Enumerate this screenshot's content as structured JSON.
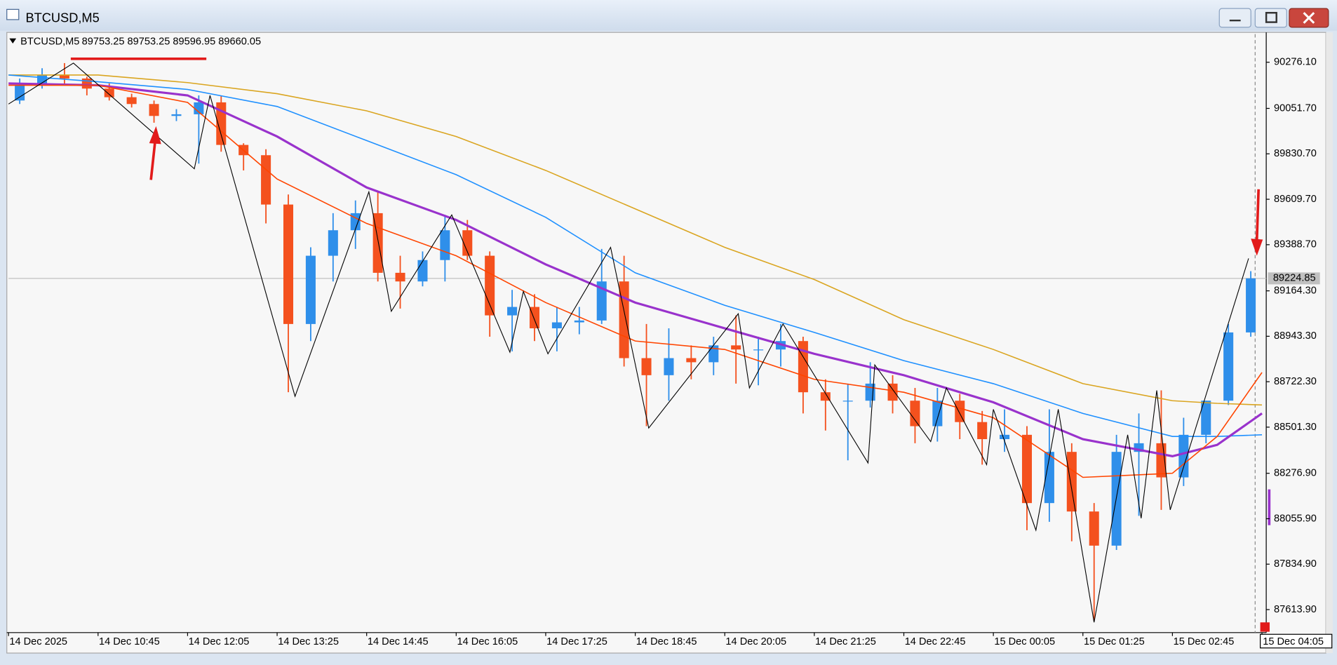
{
  "chart_data": {
    "type": "candlestick",
    "window_title": "BTCUSD,M5",
    "title": "BTCUSD,M5",
    "subtitle": "89753.25 89753.25 89596.95 89660.05",
    "xlim": [
      0,
      56
    ],
    "xticks": [
      {
        "value": 0,
        "label": "14 Dec 2025"
      },
      {
        "value": 4,
        "label": "14 Dec 10:45"
      },
      {
        "value": 8,
        "label": "14 Dec 12:05"
      },
      {
        "value": 12,
        "label": "14 Dec 13:25"
      },
      {
        "value": 16,
        "label": "14 Dec 14:45"
      },
      {
        "value": 20,
        "label": "14 Dec 16:05"
      },
      {
        "value": 24,
        "label": "14 Dec 17:25"
      },
      {
        "value": 28,
        "label": "14 Dec 18:45"
      },
      {
        "value": 32,
        "label": "14 Dec 20:05"
      },
      {
        "value": 36,
        "label": "14 Dec 21:25"
      },
      {
        "value": 40,
        "label": "14 Dec 22:45"
      },
      {
        "value": 44,
        "label": "15 Dec 00:05"
      },
      {
        "value": 48,
        "label": "15 Dec 01:25"
      },
      {
        "value": 52,
        "label": "15 Dec 02:45"
      },
      {
        "value": 56,
        "label": "15 Dec 04:05"
      }
    ],
    "ylim": [
      87502,
      90413
    ],
    "yticks": [
      {
        "value": 90276.1,
        "label": "90276.10"
      },
      {
        "value": 90051.7,
        "label": "90051.70"
      },
      {
        "value": 89830.7,
        "label": "89830.70"
      },
      {
        "value": 89609.7,
        "label": "89609.70"
      },
      {
        "value": 89388.7,
        "label": "89388.70"
      },
      {
        "value": 89164.3,
        "label": "89164.30"
      },
      {
        "value": 88943.3,
        "label": "88943.30"
      },
      {
        "value": 88722.3,
        "label": "88722.30"
      },
      {
        "value": 88501.3,
        "label": "88501.30"
      },
      {
        "value": 88276.9,
        "label": "88276.90"
      },
      {
        "value": 88055.9,
        "label": "88055.90"
      },
      {
        "value": 87834.9,
        "label": "87834.90"
      },
      {
        "value": 87613.9,
        "label": "87613.90"
      }
    ],
    "up_color": "#2f8fea",
    "down_color": "#f4511e",
    "open": [
      90090,
      90164,
      90214,
      90197,
      90148,
      90106,
      90073,
      90015,
      90023,
      90081,
      89874,
      89824,
      89584,
      89003,
      89335,
      89459,
      89542,
      89252,
      89210,
      89314,
      89459,
      89335,
      89045,
      89086,
      88982,
      89011,
      89020,
      89210,
      88837,
      88754,
      88837,
      88817,
      88899,
      88879,
      88879,
      88920,
      88671,
      88630,
      88630,
      88713,
      88630,
      88506,
      88630,
      88526,
      88443,
      88464,
      88132,
      88381,
      88091,
      87925,
      88381,
      88423,
      88257,
      88464,
      88630,
      88962
    ],
    "high": [
      90197,
      90247,
      90272,
      90206,
      90173,
      90123,
      90090,
      90048,
      90115,
      90115,
      89882,
      89853,
      89633,
      89376,
      89542,
      89604,
      89646,
      89335,
      89356,
      89534,
      89509,
      89356,
      89169,
      89148,
      89086,
      89086,
      89368,
      89335,
      89003,
      88982,
      88899,
      88941,
      89045,
      88941,
      89003,
      88941,
      88734,
      88713,
      88817,
      88754,
      88692,
      88692,
      88663,
      88580,
      88588,
      88506,
      88588,
      88423,
      88132,
      88464,
      88568,
      88680,
      88547,
      88630,
      89003,
      89260
    ],
    "low": [
      90073,
      90148,
      90164,
      90115,
      90090,
      90056,
      89982,
      89990,
      89783,
      89841,
      89750,
      89492,
      88671,
      88920,
      89210,
      89368,
      89210,
      89078,
      89186,
      89210,
      89314,
      88941,
      88870,
      88920,
      88870,
      88953,
      89003,
      88796,
      88506,
      88630,
      88734,
      88754,
      88713,
      88705,
      88796,
      88568,
      88485,
      88340,
      88597,
      88568,
      88423,
      88431,
      88443,
      88319,
      88381,
      88000,
      88041,
      87946,
      87560,
      87904,
      88070,
      88099,
      88215,
      88423,
      88609,
      88941
    ],
    "close": [
      90164,
      90214,
      90197,
      90148,
      90106,
      90073,
      90015,
      90023,
      90081,
      89874,
      89824,
      89584,
      89003,
      89335,
      89459,
      89542,
      89252,
      89210,
      89314,
      89459,
      89335,
      89045,
      89086,
      88982,
      89011,
      89020,
      89210,
      88837,
      88754,
      88837,
      88817,
      88899,
      88879,
      88879,
      88920,
      88671,
      88630,
      88630,
      88713,
      88630,
      88506,
      88630,
      88526,
      88443,
      88464,
      88132,
      88381,
      88091,
      87925,
      88381,
      88423,
      88257,
      88464,
      88630,
      88962,
      89224.85
    ],
    "current_price": 89224.85,
    "series": [
      {
        "color": "#daa520",
        "width": 1.3,
        "x": [
          0,
          4,
          8,
          12,
          16,
          20,
          24,
          28,
          32,
          36,
          40,
          44,
          48,
          52,
          54,
          56
        ],
        "values": [
          90214,
          90214,
          90177,
          90123,
          90040,
          89915,
          89750,
          89563,
          89376,
          89219,
          89024,
          88879,
          88713,
          88630,
          88617,
          88609
        ]
      },
      {
        "color": "#1e90ff",
        "width": 1.3,
        "x": [
          0,
          4,
          8,
          12,
          16,
          20,
          24,
          28,
          32,
          36,
          40,
          44,
          48,
          52,
          54,
          56
        ],
        "values": [
          90214,
          90181,
          90144,
          90061,
          89895,
          89729,
          89522,
          89252,
          89094,
          88962,
          88825,
          88713,
          88568,
          88456,
          88456,
          88464
        ]
      },
      {
        "color": "#9932cc",
        "width": 2.6,
        "x": [
          0,
          4,
          8,
          12,
          16,
          20,
          24,
          28,
          32,
          36,
          40,
          44,
          48,
          52,
          54,
          56
        ],
        "values": [
          90173,
          90164,
          90115,
          89915,
          89667,
          89509,
          89293,
          89107,
          88982,
          88858,
          88754,
          88622,
          88443,
          88360,
          88415,
          88568
        ]
      },
      {
        "color": "#ff4500",
        "width": 1.3,
        "x": [
          0,
          4,
          8,
          12,
          16,
          20,
          24,
          28,
          32,
          36,
          40,
          44,
          48,
          52,
          54,
          56
        ],
        "values": [
          90164,
          90164,
          90081,
          89708,
          89492,
          89335,
          89107,
          88920,
          88879,
          88734,
          88671,
          88547,
          88257,
          88277,
          88456,
          88767
        ]
      },
      {
        "color": "#000000",
        "width": 0.9,
        "x": [
          0,
          2.9,
          8.3,
          9,
          12.8,
          16.1,
          17.1,
          19.8,
          22.4,
          23,
          24.1,
          26.9,
          28.6,
          32.6,
          33.1,
          34.6,
          38.4,
          38.7,
          41.2,
          41.9,
          43.7,
          44,
          45.9,
          46.9,
          48.5,
          50,
          50.6,
          51.3,
          51.9,
          55.4
        ],
        "values": [
          90073,
          90272,
          89758,
          90115,
          88651,
          89646,
          89065,
          89534,
          88866,
          89161,
          88858,
          89376,
          88497,
          89053,
          88692,
          89003,
          88327,
          88804,
          88431,
          88692,
          88319,
          88588,
          88000,
          88588,
          87552,
          88464,
          88058,
          88680,
          88099,
          89322
        ]
      }
    ]
  }
}
